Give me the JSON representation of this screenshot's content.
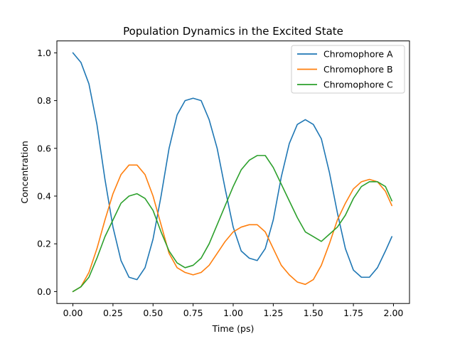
{
  "chart_data": {
    "type": "line",
    "title": "Population Dynamics in the Excited State",
    "xlabel": "Time (ps)",
    "ylabel": "Concentration",
    "xlim": [
      -0.1,
      2.1
    ],
    "ylim": [
      -0.05,
      1.05
    ],
    "xticks": [
      0.0,
      0.25,
      0.5,
      0.75,
      1.0,
      1.25,
      1.5,
      1.75,
      2.0
    ],
    "xtick_labels": [
      "0.00",
      "0.25",
      "0.50",
      "0.75",
      "1.00",
      "1.25",
      "1.50",
      "1.75",
      "2.00"
    ],
    "yticks": [
      0.0,
      0.2,
      0.4,
      0.6,
      0.8,
      1.0
    ],
    "ytick_labels": [
      "0.0",
      "0.2",
      "0.4",
      "0.6",
      "0.8",
      "1.0"
    ],
    "grid": false,
    "legend_position": "top-right",
    "x": [
      0.0,
      0.05,
      0.1,
      0.15,
      0.2,
      0.25,
      0.3,
      0.35,
      0.4,
      0.45,
      0.5,
      0.55,
      0.6,
      0.65,
      0.7,
      0.75,
      0.8,
      0.85,
      0.9,
      0.95,
      1.0,
      1.05,
      1.1,
      1.15,
      1.2,
      1.25,
      1.3,
      1.35,
      1.4,
      1.45,
      1.5,
      1.55,
      1.6,
      1.65,
      1.7,
      1.75,
      1.8,
      1.85,
      1.9,
      1.95,
      1.99
    ],
    "series": [
      {
        "name": "Chromophore A",
        "color": "#1f77b4",
        "values": [
          1.0,
          0.96,
          0.87,
          0.7,
          0.47,
          0.27,
          0.13,
          0.06,
          0.05,
          0.1,
          0.22,
          0.4,
          0.6,
          0.74,
          0.8,
          0.81,
          0.8,
          0.72,
          0.6,
          0.43,
          0.27,
          0.17,
          0.14,
          0.13,
          0.18,
          0.3,
          0.48,
          0.62,
          0.7,
          0.72,
          0.7,
          0.64,
          0.5,
          0.33,
          0.18,
          0.09,
          0.06,
          0.06,
          0.1,
          0.17,
          0.23
        ]
      },
      {
        "name": "Chromophore B",
        "color": "#ff7f0e",
        "values": [
          0.0,
          0.02,
          0.08,
          0.18,
          0.3,
          0.41,
          0.49,
          0.53,
          0.53,
          0.49,
          0.4,
          0.28,
          0.16,
          0.1,
          0.08,
          0.07,
          0.08,
          0.11,
          0.16,
          0.21,
          0.25,
          0.27,
          0.28,
          0.28,
          0.25,
          0.18,
          0.11,
          0.07,
          0.04,
          0.03,
          0.05,
          0.11,
          0.2,
          0.3,
          0.37,
          0.43,
          0.46,
          0.47,
          0.46,
          0.42,
          0.36
        ]
      },
      {
        "name": "Chromophore C",
        "color": "#2ca02c",
        "values": [
          0.0,
          0.02,
          0.06,
          0.14,
          0.23,
          0.3,
          0.37,
          0.4,
          0.41,
          0.39,
          0.34,
          0.25,
          0.17,
          0.12,
          0.1,
          0.11,
          0.14,
          0.2,
          0.28,
          0.36,
          0.44,
          0.51,
          0.55,
          0.57,
          0.57,
          0.52,
          0.45,
          0.38,
          0.31,
          0.25,
          0.23,
          0.21,
          0.24,
          0.27,
          0.32,
          0.39,
          0.44,
          0.46,
          0.46,
          0.44,
          0.38
        ]
      }
    ]
  }
}
